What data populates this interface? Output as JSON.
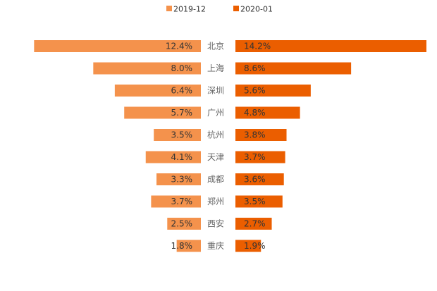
{
  "chart_data": {
    "type": "bar",
    "orientation": "horizontal-butterfly",
    "categories": [
      "北京",
      "上海",
      "深圳",
      "广州",
      "杭州",
      "天津",
      "成都",
      "郑州",
      "西安",
      "重庆"
    ],
    "series": [
      {
        "name": "2019-12",
        "color": "#f4924c",
        "direction": "left",
        "values": [
          12.4,
          8.0,
          6.4,
          5.7,
          3.5,
          4.1,
          3.3,
          3.7,
          2.5,
          1.8
        ],
        "labels": [
          "12.4%",
          "8.0%",
          "6.4%",
          "5.7%",
          "3.5%",
          "4.1%",
          "3.3%",
          "3.7%",
          "2.5%",
          "1.8%"
        ]
      },
      {
        "name": "2020-01",
        "color": "#eb5e00",
        "direction": "right",
        "values": [
          14.2,
          8.6,
          5.6,
          4.8,
          3.8,
          3.7,
          3.6,
          3.5,
          2.7,
          1.9
        ],
        "labels": [
          "14.2%",
          "8.6%",
          "5.6%",
          "4.8%",
          "3.8%",
          "3.7%",
          "3.6%",
          "3.5%",
          "2.7%",
          "1.9%"
        ]
      }
    ],
    "xlim": [
      0,
      14.2
    ],
    "value_unit": "%",
    "legend_position": "top-center",
    "grid": false
  }
}
